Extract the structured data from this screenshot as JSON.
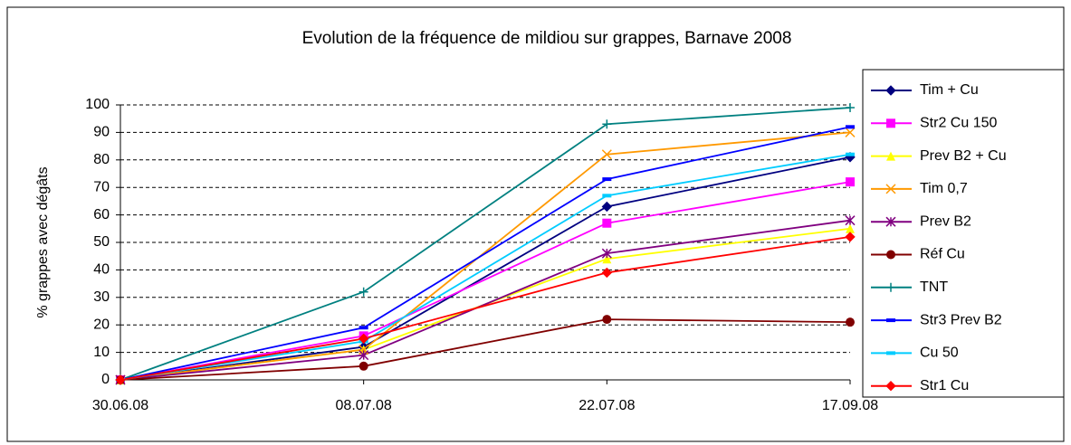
{
  "chart_data": {
    "type": "line",
    "title": "Evolution de la fréquence de mildiou sur grappes, Barnave 2008",
    "y_label": "% grappes avec dégâts",
    "categories": [
      "30.06.08",
      "08.07.08",
      "22.07.08",
      "17.09.08"
    ],
    "ylim": [
      0,
      100
    ],
    "yticks": [
      0,
      10,
      20,
      30,
      40,
      50,
      60,
      70,
      80,
      90,
      100
    ],
    "grid": true,
    "legend": "right",
    "series": [
      {
        "name": "Tim + Cu",
        "color": "#000080",
        "marker": "diamond",
        "values": [
          0,
          12,
          63,
          81
        ]
      },
      {
        "name": "Str2 Cu 150",
        "color": "#FF00FF",
        "marker": "square",
        "values": [
          0,
          16,
          57,
          72
        ]
      },
      {
        "name": "Prev B2 + Cu",
        "color": "#FFFF00",
        "marker": "triangle",
        "values": [
          0,
          11,
          44,
          55
        ]
      },
      {
        "name": "Tim 0,7",
        "color": "#FF9900",
        "marker": "x",
        "values": [
          0,
          11,
          82,
          90
        ]
      },
      {
        "name": "Prev B2",
        "color": "#800080",
        "marker": "star",
        "values": [
          0,
          9,
          46,
          58
        ]
      },
      {
        "name": "Réf Cu",
        "color": "#800000",
        "marker": "circle",
        "values": [
          0,
          5,
          22,
          21
        ]
      },
      {
        "name": "TNT",
        "color": "#008080",
        "marker": "plus",
        "values": [
          0,
          32,
          93,
          99
        ]
      },
      {
        "name": "Str3 Prev B2",
        "color": "#0000FF",
        "marker": "dash",
        "values": [
          0,
          19,
          73,
          92
        ]
      },
      {
        "name": "Cu 50",
        "color": "#00CCFF",
        "marker": "dash",
        "values": [
          0,
          14,
          67,
          82
        ]
      },
      {
        "name": "Str1 Cu",
        "color": "#FF0000",
        "marker": "diamond",
        "values": [
          0,
          15,
          39,
          52
        ]
      }
    ]
  }
}
